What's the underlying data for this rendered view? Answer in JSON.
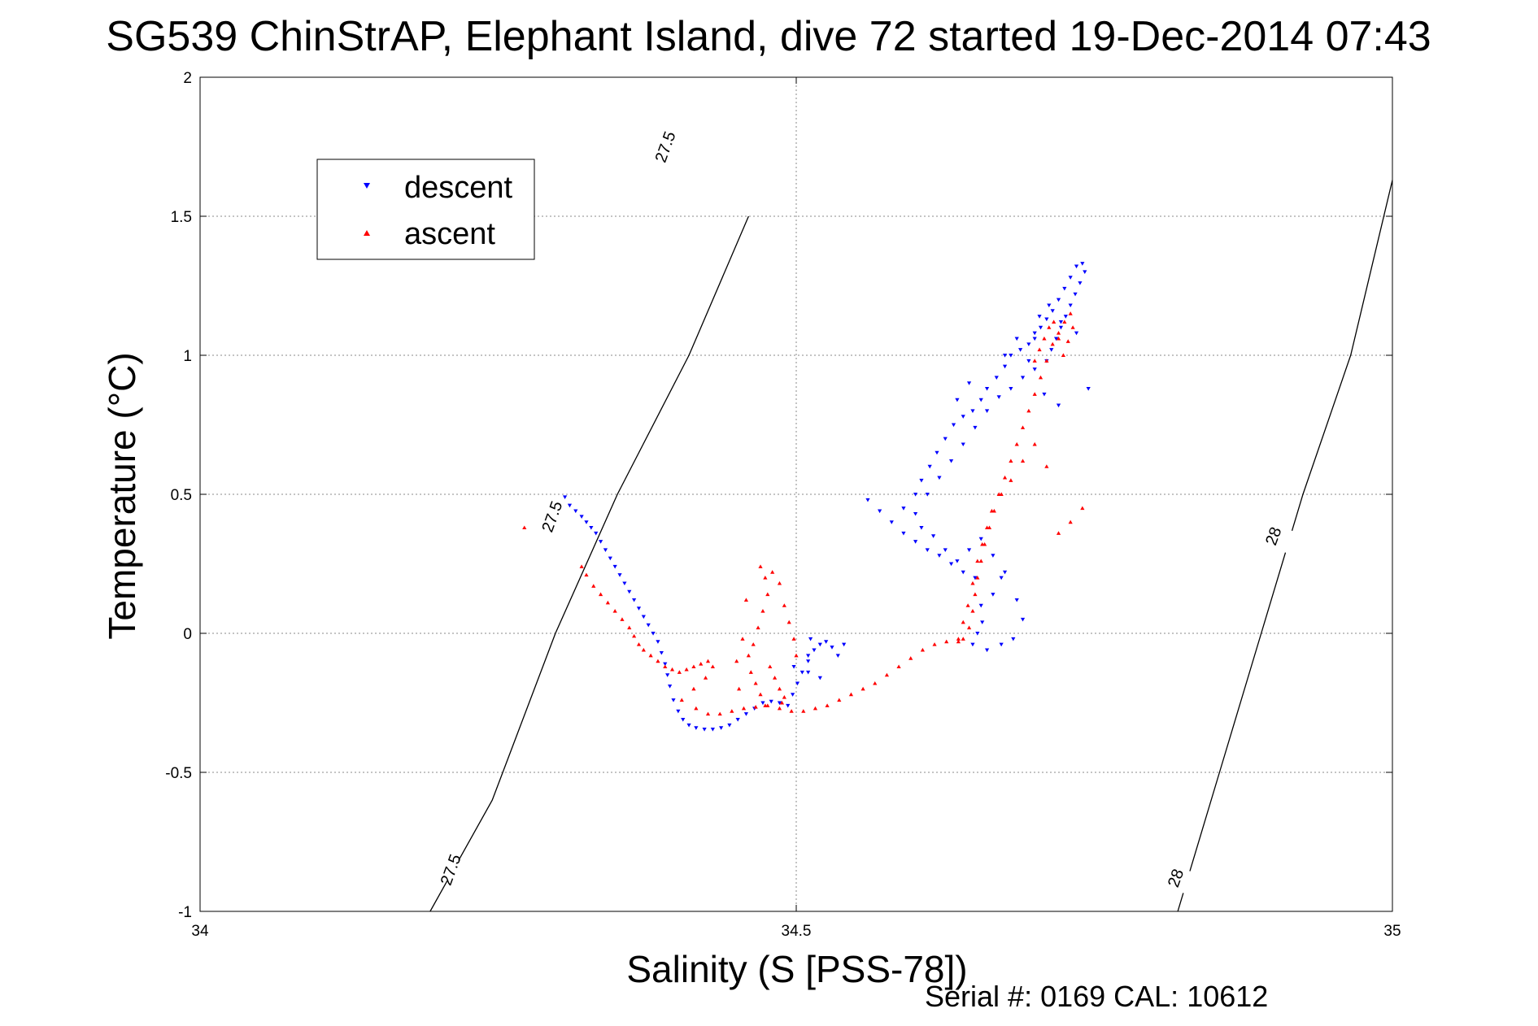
{
  "chart_data": {
    "type": "scatter",
    "title": "SG539 ChinStrAP, Elephant Island, dive 72 started 19-Dec-2014 07:43",
    "xlabel": "Salinity (S [PSS-78])",
    "ylabel": "Temperature (°C)",
    "xlim": [
      34,
      35
    ],
    "ylim": [
      -1,
      2
    ],
    "xticks": [
      "34",
      "34.5",
      "35"
    ],
    "yticks": [
      "-1",
      "-0.5",
      "0",
      "0.5",
      "1",
      "1.5",
      "2"
    ],
    "grid": true,
    "legend": {
      "placement": "top-left",
      "entries": [
        "descent",
        "ascent"
      ]
    },
    "footer": "Serial #: 0169 CAL: 10612",
    "colors": {
      "descent": "#0000ff",
      "ascent": "#ff0000",
      "contour": "#000000"
    },
    "contours": [
      {
        "value": "27.5",
        "points": [
          [
            34.193,
            -1.0
          ],
          [
            34.245,
            -0.6
          ],
          [
            34.298,
            0.0
          ],
          [
            34.35,
            0.5
          ],
          [
            34.41,
            1.0
          ],
          [
            34.46,
            1.5
          ],
          [
            34.41,
            1.0
          ],
          [
            34.41,
            1.0
          ]
        ],
        "labels": [
          [
            34.21,
            -0.85
          ],
          [
            34.295,
            0.42
          ],
          [
            34.39,
            1.75
          ]
        ]
      },
      {
        "value": "28",
        "points": [
          [
            34.82,
            -1.0
          ],
          [
            34.855,
            -0.5
          ],
          [
            34.89,
            0.0
          ],
          [
            34.925,
            0.5
          ],
          [
            34.965,
            1.0
          ],
          [
            35.0,
            1.63
          ]
        ],
        "labels": [
          [
            34.818,
            -0.88
          ],
          [
            34.9,
            0.35
          ]
        ]
      }
    ],
    "series": [
      {
        "name": "descent",
        "marker": "triangle-down",
        "points": [
          [
            34.306,
            0.49
          ],
          [
            34.31,
            0.46
          ],
          [
            34.315,
            0.44
          ],
          [
            34.32,
            0.42
          ],
          [
            34.324,
            0.4
          ],
          [
            34.328,
            0.38
          ],
          [
            34.332,
            0.36
          ],
          [
            34.336,
            0.33
          ],
          [
            34.34,
            0.3
          ],
          [
            34.344,
            0.27
          ],
          [
            34.348,
            0.24
          ],
          [
            34.352,
            0.21
          ],
          [
            34.356,
            0.18
          ],
          [
            34.36,
            0.15
          ],
          [
            34.364,
            0.12
          ],
          [
            34.368,
            0.09
          ],
          [
            34.372,
            0.06
          ],
          [
            34.376,
            0.03
          ],
          [
            34.38,
            0.0
          ],
          [
            34.384,
            -0.03
          ],
          [
            34.387,
            -0.07
          ],
          [
            34.39,
            -0.11
          ],
          [
            34.392,
            -0.15
          ],
          [
            34.394,
            -0.19
          ],
          [
            34.397,
            -0.24
          ],
          [
            34.401,
            -0.28
          ],
          [
            34.405,
            -0.31
          ],
          [
            34.41,
            -0.33
          ],
          [
            34.416,
            -0.34
          ],
          [
            34.423,
            -0.345
          ],
          [
            34.43,
            -0.345
          ],
          [
            34.437,
            -0.34
          ],
          [
            34.444,
            -0.33
          ],
          [
            34.451,
            -0.31
          ],
          [
            34.458,
            -0.29
          ],
          [
            34.465,
            -0.27
          ],
          [
            34.472,
            -0.25
          ],
          [
            34.479,
            -0.245
          ],
          [
            34.486,
            -0.25
          ],
          [
            34.493,
            -0.26
          ],
          [
            34.497,
            -0.22
          ],
          [
            34.501,
            -0.18
          ],
          [
            34.505,
            -0.14
          ],
          [
            34.51,
            -0.1
          ],
          [
            34.515,
            -0.06
          ],
          [
            34.52,
            -0.04
          ],
          [
            34.525,
            -0.03
          ],
          [
            34.53,
            -0.05
          ],
          [
            34.535,
            -0.08
          ],
          [
            34.512,
            -0.02
          ],
          [
            34.51,
            -0.08
          ],
          [
            34.498,
            -0.12
          ],
          [
            34.52,
            -0.16
          ],
          [
            34.54,
            -0.04
          ],
          [
            34.51,
            -0.14
          ],
          [
            34.56,
            0.48
          ],
          [
            34.57,
            0.44
          ],
          [
            34.58,
            0.4
          ],
          [
            34.59,
            0.36
          ],
          [
            34.6,
            0.33
          ],
          [
            34.61,
            0.3
          ],
          [
            34.62,
            0.28
          ],
          [
            34.63,
            0.25
          ],
          [
            34.64,
            0.22
          ],
          [
            34.65,
            0.2
          ],
          [
            34.655,
            0.1
          ],
          [
            34.652,
            0.0
          ],
          [
            34.648,
            -0.04
          ],
          [
            34.656,
            0.04
          ],
          [
            34.665,
            0.14
          ],
          [
            34.672,
            0.2
          ],
          [
            34.59,
            0.45
          ],
          [
            34.6,
            0.5
          ],
          [
            34.605,
            0.55
          ],
          [
            34.612,
            0.6
          ],
          [
            34.618,
            0.65
          ],
          [
            34.625,
            0.7
          ],
          [
            34.632,
            0.75
          ],
          [
            34.64,
            0.78
          ],
          [
            34.648,
            0.8
          ],
          [
            34.655,
            0.84
          ],
          [
            34.66,
            0.88
          ],
          [
            34.668,
            0.92
          ],
          [
            34.675,
            0.96
          ],
          [
            34.68,
            1.0
          ],
          [
            34.688,
            1.02
          ],
          [
            34.695,
            1.04
          ],
          [
            34.7,
            1.06
          ],
          [
            34.705,
            1.1
          ],
          [
            34.71,
            1.13
          ],
          [
            34.715,
            1.16
          ],
          [
            34.72,
            1.2
          ],
          [
            34.725,
            1.24
          ],
          [
            34.73,
            1.28
          ],
          [
            34.735,
            1.32
          ],
          [
            34.74,
            1.33
          ],
          [
            34.742,
            1.3
          ],
          [
            34.738,
            1.26
          ],
          [
            34.734,
            1.22
          ],
          [
            34.73,
            1.18
          ],
          [
            34.726,
            1.14
          ],
          [
            34.722,
            1.1
          ],
          [
            34.718,
            1.06
          ],
          [
            34.714,
            1.02
          ],
          [
            34.71,
            0.98
          ],
          [
            34.7,
            0.95
          ],
          [
            34.69,
            0.92
          ],
          [
            34.68,
            0.88
          ],
          [
            34.67,
            0.85
          ],
          [
            34.66,
            0.8
          ],
          [
            34.65,
            0.74
          ],
          [
            34.64,
            0.68
          ],
          [
            34.63,
            0.62
          ],
          [
            34.62,
            0.56
          ],
          [
            34.61,
            0.5
          ],
          [
            34.6,
            0.43
          ],
          [
            34.605,
            0.38
          ],
          [
            34.615,
            0.35
          ],
          [
            34.625,
            0.3
          ],
          [
            34.635,
            0.26
          ],
          [
            34.645,
            0.3
          ],
          [
            34.655,
            0.34
          ],
          [
            34.665,
            0.28
          ],
          [
            34.675,
            0.22
          ],
          [
            34.685,
            0.12
          ],
          [
            34.69,
            0.05
          ],
          [
            34.682,
            -0.02
          ],
          [
            34.672,
            -0.04
          ],
          [
            34.66,
            -0.06
          ],
          [
            34.7,
            1.08
          ],
          [
            34.704,
            1.14
          ],
          [
            34.712,
            1.18
          ],
          [
            34.722,
            1.12
          ],
          [
            34.735,
            1.08
          ],
          [
            34.745,
            0.88
          ],
          [
            34.72,
            0.82
          ],
          [
            34.708,
            0.86
          ],
          [
            34.695,
            0.98
          ],
          [
            34.685,
            1.06
          ],
          [
            34.675,
            1.0
          ],
          [
            34.645,
            0.9
          ],
          [
            34.635,
            0.84
          ]
        ]
      },
      {
        "name": "ascent",
        "marker": "triangle-up",
        "points": [
          [
            34.272,
            0.38
          ],
          [
            34.32,
            0.24
          ],
          [
            34.324,
            0.21
          ],
          [
            34.33,
            0.17
          ],
          [
            34.336,
            0.14
          ],
          [
            34.342,
            0.11
          ],
          [
            34.348,
            0.08
          ],
          [
            34.354,
            0.05
          ],
          [
            34.36,
            0.02
          ],
          [
            34.364,
            -0.01
          ],
          [
            34.368,
            -0.04
          ],
          [
            34.372,
            -0.06
          ],
          [
            34.378,
            -0.08
          ],
          [
            34.384,
            -0.1
          ],
          [
            34.39,
            -0.12
          ],
          [
            34.396,
            -0.13
          ],
          [
            34.402,
            -0.14
          ],
          [
            34.408,
            -0.13
          ],
          [
            34.414,
            -0.12
          ],
          [
            34.42,
            -0.11
          ],
          [
            34.426,
            -0.1
          ],
          [
            34.43,
            -0.12
          ],
          [
            34.424,
            -0.16
          ],
          [
            34.414,
            -0.2
          ],
          [
            34.404,
            -0.24
          ],
          [
            34.416,
            -0.27
          ],
          [
            34.426,
            -0.29
          ],
          [
            34.436,
            -0.29
          ],
          [
            34.446,
            -0.28
          ],
          [
            34.456,
            -0.27
          ],
          [
            34.466,
            -0.265
          ],
          [
            34.476,
            -0.26
          ],
          [
            34.486,
            -0.27
          ],
          [
            34.496,
            -0.28
          ],
          [
            34.506,
            -0.28
          ],
          [
            34.516,
            -0.27
          ],
          [
            34.526,
            -0.26
          ],
          [
            34.536,
            -0.24
          ],
          [
            34.546,
            -0.22
          ],
          [
            34.556,
            -0.2
          ],
          [
            34.566,
            -0.18
          ],
          [
            34.576,
            -0.15
          ],
          [
            34.586,
            -0.12
          ],
          [
            34.596,
            -0.09
          ],
          [
            34.606,
            -0.06
          ],
          [
            34.616,
            -0.04
          ],
          [
            34.626,
            -0.03
          ],
          [
            34.636,
            -0.03
          ],
          [
            34.64,
            -0.02
          ],
          [
            34.645,
            0.02
          ],
          [
            34.648,
            0.08
          ],
          [
            34.65,
            0.14
          ],
          [
            34.652,
            0.2
          ],
          [
            34.655,
            0.26
          ],
          [
            34.658,
            0.32
          ],
          [
            34.662,
            0.38
          ],
          [
            34.666,
            0.44
          ],
          [
            34.67,
            0.5
          ],
          [
            34.675,
            0.56
          ],
          [
            34.68,
            0.62
          ],
          [
            34.685,
            0.68
          ],
          [
            34.69,
            0.74
          ],
          [
            34.695,
            0.8
          ],
          [
            34.7,
            0.86
          ],
          [
            34.705,
            0.92
          ],
          [
            34.71,
            0.98
          ],
          [
            34.715,
            1.04
          ],
          [
            34.72,
            1.08
          ],
          [
            34.725,
            1.12
          ],
          [
            34.73,
            1.15
          ],
          [
            34.732,
            1.1
          ],
          [
            34.728,
            1.05
          ],
          [
            34.724,
            1.0
          ],
          [
            34.72,
            1.06
          ],
          [
            34.716,
            1.12
          ],
          [
            34.712,
            1.1
          ],
          [
            34.708,
            1.06
          ],
          [
            34.704,
            1.02
          ],
          [
            34.7,
            0.98
          ],
          [
            34.69,
            0.62
          ],
          [
            34.68,
            0.55
          ],
          [
            34.672,
            0.5
          ],
          [
            34.664,
            0.44
          ],
          [
            34.66,
            0.38
          ],
          [
            34.656,
            0.32
          ],
          [
            34.652,
            0.26
          ],
          [
            34.648,
            0.18
          ],
          [
            34.644,
            0.1
          ],
          [
            34.64,
            0.04
          ],
          [
            34.636,
            -0.02
          ],
          [
            34.74,
            0.45
          ],
          [
            34.73,
            0.4
          ],
          [
            34.72,
            0.36
          ],
          [
            34.71,
            0.6
          ],
          [
            34.7,
            0.68
          ],
          [
            34.47,
            0.24
          ],
          [
            34.474,
            0.2
          ],
          [
            34.476,
            0.14
          ],
          [
            34.472,
            0.08
          ],
          [
            34.468,
            0.02
          ],
          [
            34.464,
            -0.04
          ],
          [
            34.46,
            -0.08
          ],
          [
            34.462,
            -0.14
          ],
          [
            34.466,
            -0.18
          ],
          [
            34.47,
            -0.22
          ],
          [
            34.48,
            0.22
          ],
          [
            34.486,
            0.18
          ],
          [
            34.49,
            0.1
          ],
          [
            34.494,
            0.04
          ],
          [
            34.498,
            -0.02
          ],
          [
            34.5,
            -0.08
          ],
          [
            34.478,
            -0.12
          ],
          [
            34.482,
            -0.16
          ],
          [
            34.486,
            -0.2
          ],
          [
            34.49,
            -0.23
          ],
          [
            34.458,
            0.12
          ],
          [
            34.455,
            -0.02
          ],
          [
            34.45,
            -0.1
          ],
          [
            34.452,
            -0.2
          ],
          [
            34.474,
            -0.26
          ],
          [
            34.488,
            -0.25
          ]
        ]
      }
    ]
  }
}
